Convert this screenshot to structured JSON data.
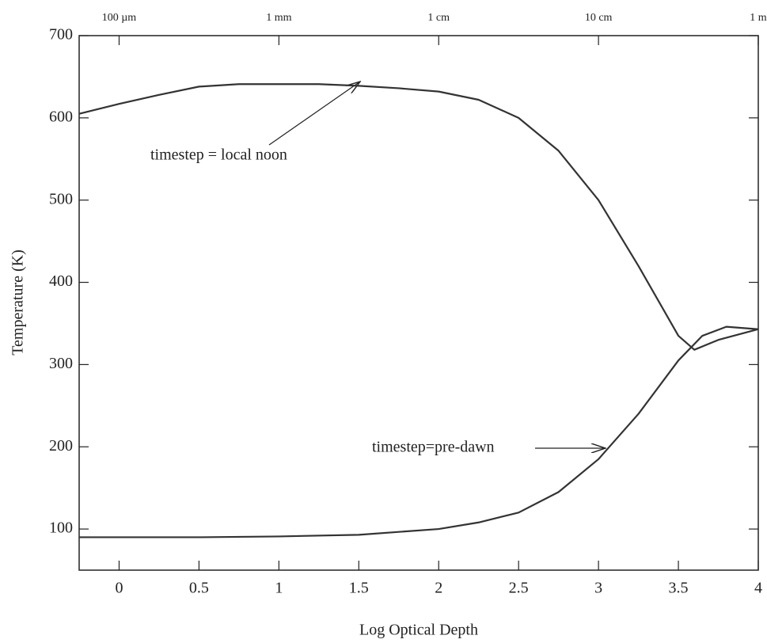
{
  "chart_data": {
    "type": "line",
    "x_label": "Log Optical Depth",
    "y_label": "Temperature (K)",
    "xlim": [
      -0.25,
      4
    ],
    "ylim": [
      50,
      700
    ],
    "xticks": [
      0,
      0.5,
      1,
      1.5,
      2,
      2.5,
      3,
      3.5,
      4
    ],
    "yticks": [
      100,
      200,
      300,
      400,
      500,
      600,
      700
    ],
    "x2ticks": [
      {
        "value": 0,
        "label": "100 µm"
      },
      {
        "value": 1,
        "label": "1 mm"
      },
      {
        "value": 2,
        "label": "1 cm"
      },
      {
        "value": 3,
        "label": "10 cm"
      },
      {
        "value": 4,
        "label": "1 m"
      }
    ],
    "annotations": [
      "timestep = local noon",
      "timestep=pre-dawn"
    ],
    "series": [
      {
        "color": "#333333",
        "x": [
          -0.25,
          0,
          0.25,
          0.5,
          0.75,
          1,
          1.25,
          1.5,
          1.75,
          2,
          2.25,
          2.5,
          2.75,
          3,
          3.25,
          3.5,
          3.6,
          3.75,
          4
        ],
        "values": [
          605,
          617,
          628,
          638,
          641,
          641,
          641,
          639,
          636,
          632,
          622,
          600,
          560,
          500,
          420,
          335,
          318,
          330,
          343
        ]
      },
      {
        "color": "#333333",
        "x": [
          -0.25,
          0,
          0.5,
          1,
          1.5,
          2,
          2.25,
          2.5,
          2.75,
          3,
          3.25,
          3.5,
          3.65,
          3.8,
          4
        ],
        "values": [
          90,
          90,
          90,
          91,
          93,
          100,
          108,
          120,
          145,
          185,
          240,
          305,
          335,
          346,
          343
        ]
      }
    ]
  }
}
